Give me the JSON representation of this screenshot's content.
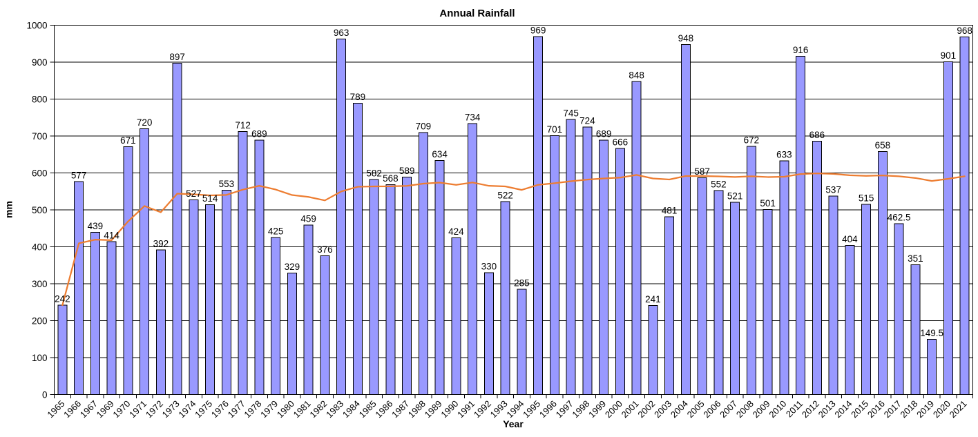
{
  "chart_data": {
    "type": "bar",
    "title": "Annual Rainfall",
    "xlabel": "Year",
    "ylabel": "mm",
    "ylim": [
      0,
      1000
    ],
    "ytick_step": 100,
    "grid": true,
    "legend": "none",
    "bar_data_labels_visible": true,
    "note": "x axis skips year 1968; orange line is the cumulative (running) mean of annual rainfall",
    "categories": [
      "1965",
      "1966",
      "1967",
      "1969",
      "1970",
      "1971",
      "1972",
      "1973",
      "1974",
      "1975",
      "1976",
      "1977",
      "1978",
      "1979",
      "1980",
      "1981",
      "1982",
      "1983",
      "1984",
      "1985",
      "1986",
      "1987",
      "1988",
      "1989",
      "1990",
      "1991",
      "1992",
      "1993",
      "1994",
      "1995",
      "1996",
      "1997",
      "1998",
      "1999",
      "2000",
      "2001",
      "2002",
      "2003",
      "2004",
      "2005",
      "2006",
      "2007",
      "2008",
      "2009",
      "2010",
      "2011",
      "2012",
      "2013",
      "2014",
      "2015",
      "2016",
      "2017",
      "2018",
      "2019",
      "2020",
      "2021"
    ],
    "series": [
      {
        "name": "annual-rainfall-bars",
        "type": "bar",
        "values": [
          242,
          577,
          439,
          414,
          671,
          720,
          392,
          897,
          527,
          514,
          553,
          712,
          689,
          425,
          329,
          459,
          376,
          963,
          789,
          582,
          568,
          589,
          709,
          634,
          424,
          734,
          330,
          522,
          285,
          969,
          701,
          745,
          724,
          689,
          666,
          848,
          241,
          481,
          948,
          587,
          552,
          521,
          672,
          501,
          633,
          916,
          686,
          537,
          404,
          515,
          658,
          462.5,
          351,
          149.5,
          901,
          968
        ]
      },
      {
        "name": "running-mean-line",
        "type": "line",
        "values": [
          242,
          409.5,
          419.3,
          418,
          468.6,
          510.5,
          493.6,
          544,
          542.1,
          539.3,
          540.5,
          554.8,
          565.2,
          555.1,
          540.1,
          535,
          525.6,
          549.9,
          562.5,
          563.5,
          563.7,
          564.9,
          571.1,
          573.8,
          567.8,
          574.2,
          565.1,
          563.6,
          554,
          567.8,
          572.1,
          577.5,
          581.9,
          585.1,
          587.4,
          594.6,
          585.1,
          582.3,
          591.7,
          591.6,
          590.6,
          589,
          590.9,
          588.9,
          589.8,
          596.9,
          598.8,
          597.5,
          593.6,
          592,
          593.3,
          590.8,
          586.3,
          578.2,
          584.1,
          590.9
        ]
      }
    ],
    "colors": {
      "bar_fill": "#9999FF",
      "bar_border": "#000000",
      "line": "#ED7D31",
      "grid": "#000000",
      "text": "#000000",
      "background": "#FFFFFF"
    }
  }
}
